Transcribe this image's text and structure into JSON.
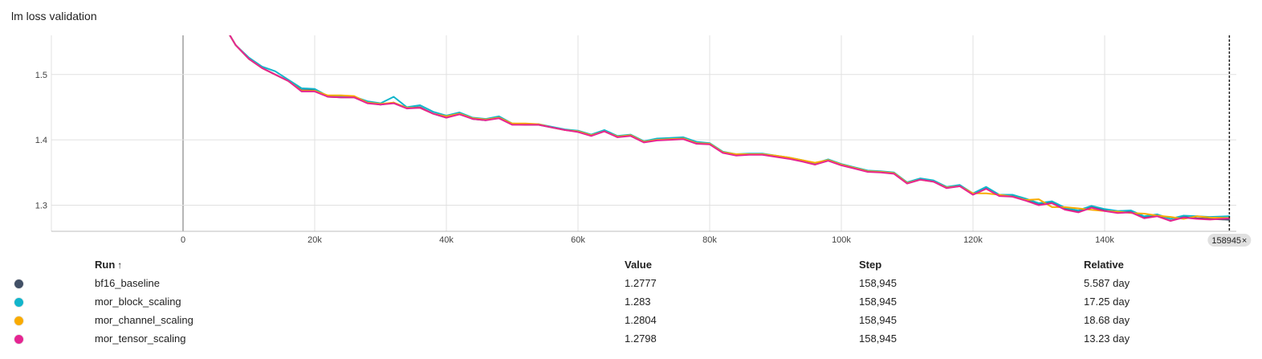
{
  "card": {
    "title": "lm loss validation"
  },
  "cursor": {
    "step_label": "158945",
    "close_icon": "×"
  },
  "table": {
    "headers": {
      "run": "Run",
      "sort_icon": "↑",
      "value": "Value",
      "step": "Step",
      "relative": "Relative"
    },
    "rows": [
      {
        "run": "bf16_baseline",
        "value": "1.2777",
        "step": "158,945",
        "relative": "5.587 day",
        "color": "#425066"
      },
      {
        "run": "mor_block_scaling",
        "value": "1.283",
        "step": "158,945",
        "relative": "17.25 day",
        "color": "#12b5cb"
      },
      {
        "run": "mor_channel_scaling",
        "value": "1.2804",
        "step": "158,945",
        "relative": "18.68 day",
        "color": "#f9ab00"
      },
      {
        "run": "mor_tensor_scaling",
        "value": "1.2798",
        "step": "158,945",
        "relative": "13.23 day",
        "color": "#e52592"
      }
    ]
  },
  "chart_data": {
    "type": "line",
    "title": "lm loss validation",
    "xlabel": "",
    "ylabel": "",
    "xlim": [
      -20000,
      160000
    ],
    "ylim": [
      1.26,
      1.56
    ],
    "x_ticks": [
      0,
      20000,
      40000,
      60000,
      80000,
      100000,
      120000,
      140000
    ],
    "x_tick_labels": [
      "0",
      "20k",
      "40k",
      "60k",
      "80k",
      "100k",
      "120k",
      "140k"
    ],
    "y_ticks": [
      1.3,
      1.4,
      1.5
    ],
    "y_tick_labels": [
      "1.3",
      "1.4",
      "1.5"
    ],
    "grid": true,
    "cursor_x": 158945,
    "x": [
      7000,
      8000,
      10000,
      12000,
      14000,
      16000,
      18000,
      20000,
      22000,
      24000,
      26000,
      28000,
      30000,
      32000,
      34000,
      36000,
      38000,
      40000,
      42000,
      44000,
      46000,
      48000,
      50000,
      52000,
      54000,
      56000,
      58000,
      60000,
      62000,
      64000,
      66000,
      68000,
      70000,
      72000,
      74000,
      76000,
      78000,
      80000,
      82000,
      84000,
      86000,
      88000,
      90000,
      92000,
      94000,
      96000,
      98000,
      100000,
      102000,
      104000,
      106000,
      108000,
      110000,
      112000,
      114000,
      116000,
      118000,
      120000,
      122000,
      124000,
      126000,
      128000,
      130000,
      132000,
      134000,
      136000,
      138000,
      140000,
      142000,
      144000,
      146000,
      148000,
      150000,
      152000,
      154000,
      156000,
      158945
    ],
    "series": [
      {
        "name": "bf16_baseline",
        "color": "#425066",
        "values": [
          1.562,
          1.545,
          1.524,
          1.51,
          1.5,
          1.49,
          1.476,
          1.476,
          1.466,
          1.465,
          1.465,
          1.457,
          1.454,
          1.457,
          1.449,
          1.45,
          1.44,
          1.434,
          1.44,
          1.432,
          1.43,
          1.434,
          1.424,
          1.423,
          1.423,
          1.419,
          1.415,
          1.413,
          1.407,
          1.414,
          1.405,
          1.407,
          1.397,
          1.4,
          1.401,
          1.403,
          1.395,
          1.394,
          1.381,
          1.377,
          1.378,
          1.378,
          1.375,
          1.372,
          1.368,
          1.363,
          1.369,
          1.362,
          1.357,
          1.352,
          1.351,
          1.349,
          1.334,
          1.34,
          1.337,
          1.327,
          1.33,
          1.317,
          1.326,
          1.315,
          1.314,
          1.308,
          1.301,
          1.304,
          1.294,
          1.29,
          1.297,
          1.292,
          1.289,
          1.29,
          1.281,
          1.284,
          1.276,
          1.282,
          1.28,
          1.279,
          1.2777
        ]
      },
      {
        "name": "mor_block_scaling",
        "color": "#12b5cb",
        "values": [
          1.562,
          1.545,
          1.526,
          1.512,
          1.505,
          1.492,
          1.479,
          1.478,
          1.467,
          1.466,
          1.466,
          1.459,
          1.456,
          1.466,
          1.45,
          1.453,
          1.443,
          1.437,
          1.442,
          1.434,
          1.432,
          1.436,
          1.425,
          1.424,
          1.424,
          1.42,
          1.416,
          1.414,
          1.408,
          1.415,
          1.406,
          1.408,
          1.398,
          1.402,
          1.403,
          1.404,
          1.397,
          1.395,
          1.382,
          1.378,
          1.379,
          1.379,
          1.376,
          1.373,
          1.369,
          1.364,
          1.37,
          1.363,
          1.358,
          1.353,
          1.352,
          1.35,
          1.335,
          1.341,
          1.338,
          1.328,
          1.331,
          1.318,
          1.328,
          1.316,
          1.316,
          1.31,
          1.303,
          1.306,
          1.296,
          1.292,
          1.299,
          1.294,
          1.291,
          1.292,
          1.283,
          1.286,
          1.279,
          1.284,
          1.283,
          1.282,
          1.283
        ]
      },
      {
        "name": "mor_channel_scaling",
        "color": "#f9ab00",
        "values": [
          1.562,
          1.545,
          1.524,
          1.51,
          1.5,
          1.49,
          1.475,
          1.475,
          1.468,
          1.468,
          1.467,
          1.457,
          1.455,
          1.457,
          1.449,
          1.449,
          1.44,
          1.436,
          1.44,
          1.433,
          1.431,
          1.434,
          1.425,
          1.425,
          1.424,
          1.419,
          1.415,
          1.413,
          1.407,
          1.413,
          1.405,
          1.407,
          1.397,
          1.4,
          1.401,
          1.402,
          1.395,
          1.394,
          1.381,
          1.378,
          1.378,
          1.378,
          1.376,
          1.373,
          1.369,
          1.365,
          1.369,
          1.362,
          1.357,
          1.352,
          1.351,
          1.349,
          1.334,
          1.339,
          1.336,
          1.327,
          1.329,
          1.318,
          1.318,
          1.316,
          1.313,
          1.308,
          1.309,
          1.297,
          1.297,
          1.295,
          1.293,
          1.291,
          1.29,
          1.288,
          1.287,
          1.284,
          1.282,
          1.279,
          1.283,
          1.281,
          1.2804
        ]
      },
      {
        "name": "mor_tensor_scaling",
        "color": "#e52592",
        "values": [
          1.562,
          1.545,
          1.524,
          1.51,
          1.5,
          1.49,
          1.474,
          1.474,
          1.466,
          1.465,
          1.465,
          1.456,
          1.454,
          1.456,
          1.448,
          1.449,
          1.44,
          1.434,
          1.439,
          1.432,
          1.43,
          1.433,
          1.423,
          1.423,
          1.423,
          1.419,
          1.415,
          1.412,
          1.406,
          1.413,
          1.404,
          1.406,
          1.396,
          1.399,
          1.4,
          1.401,
          1.394,
          1.393,
          1.38,
          1.376,
          1.377,
          1.377,
          1.374,
          1.371,
          1.367,
          1.362,
          1.368,
          1.361,
          1.356,
          1.351,
          1.35,
          1.348,
          1.333,
          1.339,
          1.336,
          1.326,
          1.329,
          1.316,
          1.325,
          1.314,
          1.313,
          1.307,
          1.3,
          1.303,
          1.293,
          1.289,
          1.296,
          1.291,
          1.288,
          1.289,
          1.28,
          1.283,
          1.276,
          1.281,
          1.279,
          1.278,
          1.2798
        ]
      }
    ]
  }
}
